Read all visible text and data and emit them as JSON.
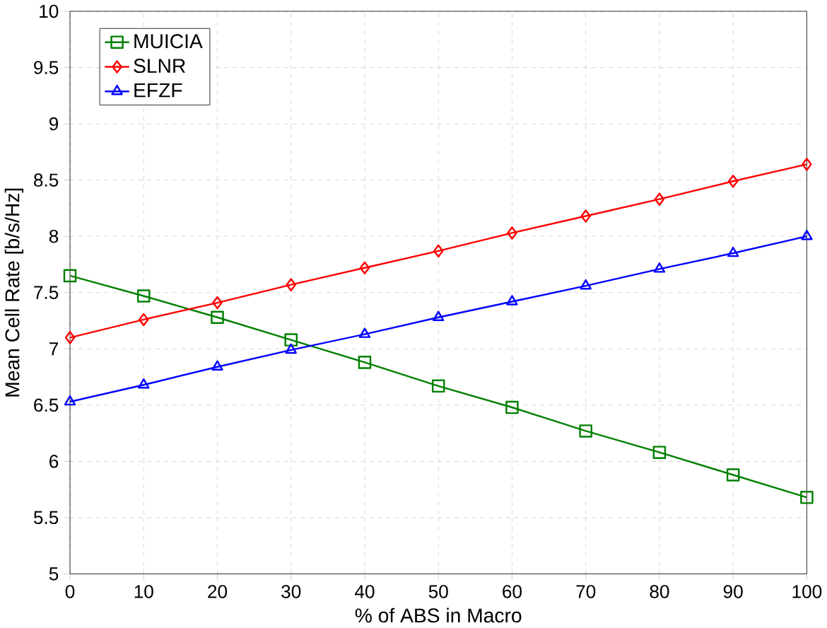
{
  "chart_data": {
    "type": "line",
    "xlabel": "% of ABS in Macro",
    "ylabel": "Mean Cell Rate [b/s/Hz]",
    "x": [
      0,
      10,
      20,
      30,
      40,
      50,
      60,
      70,
      80,
      90,
      100
    ],
    "series": [
      {
        "name": "MUICIA",
        "color": "#008000",
        "marker": "square",
        "values": [
          7.65,
          7.47,
          7.28,
          7.08,
          6.88,
          6.67,
          6.48,
          6.27,
          6.08,
          5.88,
          5.68
        ]
      },
      {
        "name": "SLNR",
        "color": "#ff0000",
        "marker": "diamond",
        "values": [
          7.1,
          7.26,
          7.41,
          7.57,
          7.72,
          7.87,
          8.03,
          8.18,
          8.33,
          8.49,
          8.64
        ]
      },
      {
        "name": "EFZF",
        "color": "#0000ff",
        "marker": "triangle",
        "values": [
          6.53,
          6.68,
          6.84,
          6.99,
          7.13,
          7.28,
          7.42,
          7.56,
          7.71,
          7.85,
          8.0
        ]
      }
    ],
    "xlim": [
      0,
      100
    ],
    "xticks": [
      0,
      10,
      20,
      30,
      40,
      50,
      60,
      70,
      80,
      90,
      100
    ],
    "ylim": [
      5,
      10
    ],
    "yticks": [
      5,
      5.5,
      6,
      6.5,
      7,
      7.5,
      8,
      8.5,
      9,
      9.5,
      10
    ],
    "grid": true,
    "legend": "top left",
    "line_style": "solid"
  }
}
